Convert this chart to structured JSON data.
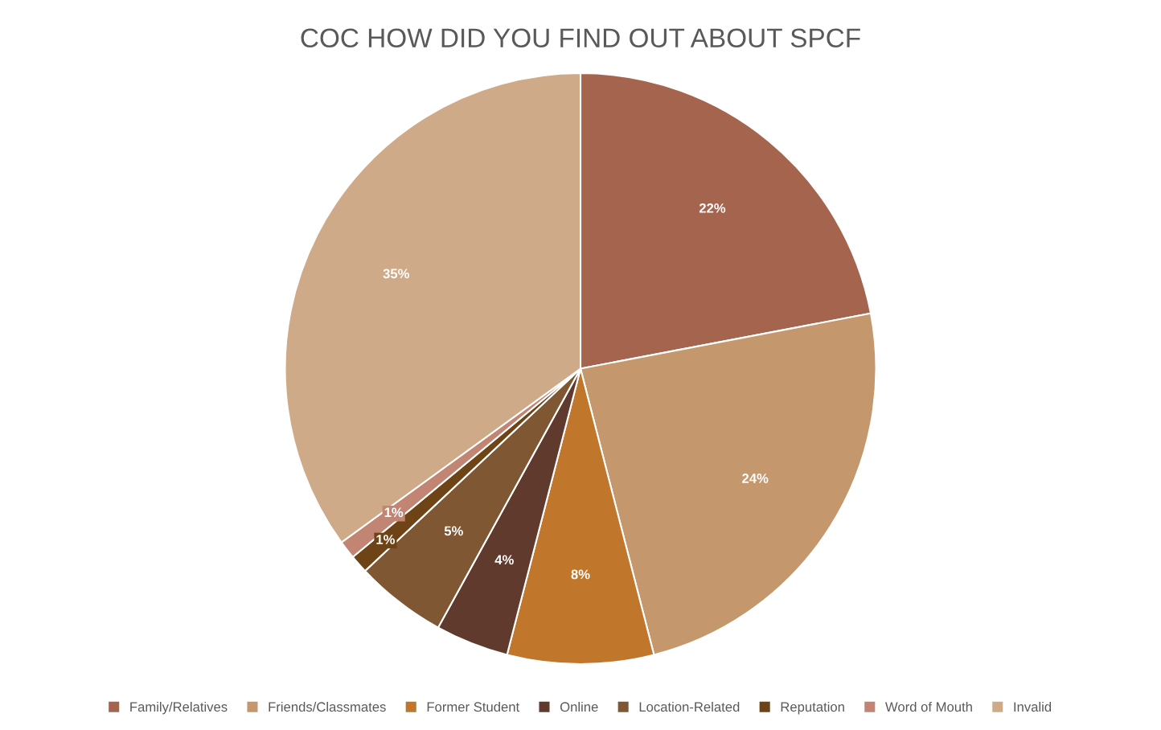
{
  "chart_data": {
    "type": "pie",
    "title": "COC HOW DID YOU FIND OUT ABOUT SPCF",
    "categories": [
      "Family/Relatives",
      "Friends/Classmates",
      "Former Student",
      "Online",
      "Location-Related",
      "Reputation",
      "Word of Mouth",
      "Invalid"
    ],
    "values": [
      22,
      24,
      8,
      4,
      5,
      1,
      1,
      35
    ],
    "colors": [
      "#a5644e",
      "#c4976d",
      "#c0762b",
      "#613a2e",
      "#7f5833",
      "#6e4316",
      "#c28473",
      "#cfaa88"
    ],
    "value_labels": [
      "22%",
      "24%",
      "8%",
      "4%",
      "5%",
      "1%",
      "1%",
      "35%"
    ],
    "legend": "bottom"
  }
}
